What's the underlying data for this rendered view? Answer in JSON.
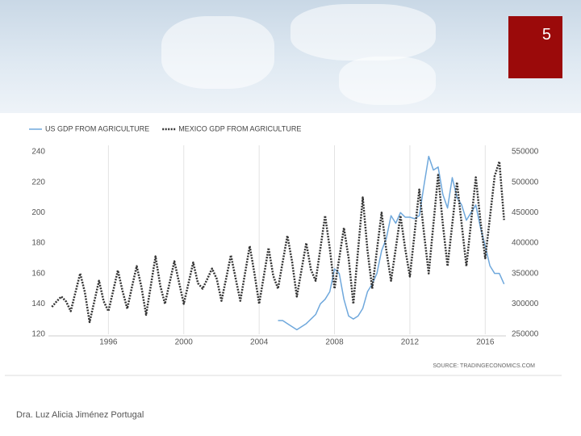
{
  "slide_number": "5",
  "footer": "Dra. Luz Alicia Jiménez Portugal",
  "chart_data": {
    "type": "line",
    "source": "SOURCE: TRADINGECONOMICS.COM",
    "x": [
      1993,
      1993.25,
      1993.5,
      1993.75,
      1994,
      1994.25,
      1994.5,
      1994.75,
      1995,
      1995.25,
      1995.5,
      1995.75,
      1996,
      1996.25,
      1996.5,
      1996.75,
      1997,
      1997.25,
      1997.5,
      1997.75,
      1998,
      1998.25,
      1998.5,
      1998.75,
      1999,
      1999.25,
      1999.5,
      1999.75,
      2000,
      2000.25,
      2000.5,
      2000.75,
      2001,
      2001.25,
      2001.5,
      2001.75,
      2002,
      2002.25,
      2002.5,
      2002.75,
      2003,
      2003.25,
      2003.5,
      2003.75,
      2004,
      2004.25,
      2004.5,
      2004.75,
      2005,
      2005.25,
      2005.5,
      2005.75,
      2006,
      2006.25,
      2006.5,
      2006.75,
      2007,
      2007.25,
      2007.5,
      2007.75,
      2008,
      2008.25,
      2008.5,
      2008.75,
      2009,
      2009.25,
      2009.5,
      2009.75,
      2010,
      2010.25,
      2010.5,
      2010.75,
      2011,
      2011.25,
      2011.5,
      2011.75,
      2012,
      2012.25,
      2012.5,
      2012.75,
      2013,
      2013.25,
      2013.5,
      2013.75,
      2014,
      2014.25,
      2014.5,
      2014.75,
      2015,
      2015.25,
      2015.5,
      2015.75,
      2016,
      2016.25,
      2016.5,
      2016.75,
      2017
    ],
    "series": [
      {
        "name": "US GDP FROM AGRICULTURE",
        "color": "#6fa8dc",
        "dashed": false,
        "values": [
          null,
          null,
          null,
          null,
          null,
          null,
          null,
          null,
          null,
          null,
          null,
          null,
          null,
          null,
          null,
          null,
          null,
          null,
          null,
          null,
          null,
          null,
          null,
          null,
          null,
          null,
          null,
          null,
          null,
          null,
          null,
          null,
          null,
          null,
          null,
          null,
          null,
          null,
          null,
          null,
          null,
          null,
          null,
          null,
          null,
          null,
          null,
          null,
          129,
          129,
          127,
          125,
          123,
          125,
          127,
          130,
          133,
          140,
          143,
          148,
          163,
          160,
          143,
          132,
          130,
          132,
          137,
          148,
          153,
          160,
          175,
          183,
          198,
          193,
          200,
          197,
          197,
          196,
          198,
          218,
          237,
          228,
          230,
          212,
          203,
          223,
          210,
          205,
          195,
          200,
          205,
          190,
          178,
          165,
          160,
          160,
          153
        ]
      },
      {
        "name": "MEXICO GDP FROM AGRICULTURE",
        "color": "#333333",
        "dashed": true,
        "axis": "y2",
        "values": [
          295000,
          304000,
          312000,
          304000,
          288000,
          319000,
          350000,
          319000,
          270000,
          304000,
          338000,
          304000,
          288000,
          321000,
          355000,
          321000,
          292000,
          328000,
          362000,
          328000,
          282000,
          330000,
          378000,
          330000,
          300000,
          335000,
          370000,
          335000,
          300000,
          334000,
          368000,
          334000,
          325000,
          341000,
          358000,
          341000,
          305000,
          342000,
          380000,
          342000,
          305000,
          350000,
          395000,
          350000,
          300000,
          346000,
          392000,
          346000,
          325000,
          369000,
          412000,
          369000,
          312000,
          356000,
          400000,
          356000,
          338000,
          391000,
          445000,
          391000,
          325000,
          375000,
          425000,
          375000,
          300000,
          388000,
          475000,
          388000,
          325000,
          388000,
          450000,
          388000,
          338000,
          391000,
          445000,
          391000,
          345000,
          416000,
          488000,
          416000,
          350000,
          431000,
          512000,
          431000,
          362000,
          431000,
          500000,
          431000,
          362000,
          435000,
          508000,
          435000,
          375000,
          442000,
          510000,
          534000,
          438000
        ]
      }
    ],
    "xlim": [
      1992.9,
      2017.1
    ],
    "xticks": [
      1996,
      2000,
      2004,
      2008,
      2012,
      2016
    ],
    "ylim": [
      120,
      240
    ],
    "yticks": [
      120,
      140,
      160,
      180,
      200,
      220,
      240
    ],
    "y2lim": [
      250000,
      550000
    ],
    "y2ticks": [
      250000,
      300000,
      350000,
      400000,
      450000,
      500000,
      550000
    ],
    "grid": "x",
    "legend": "top-left"
  }
}
